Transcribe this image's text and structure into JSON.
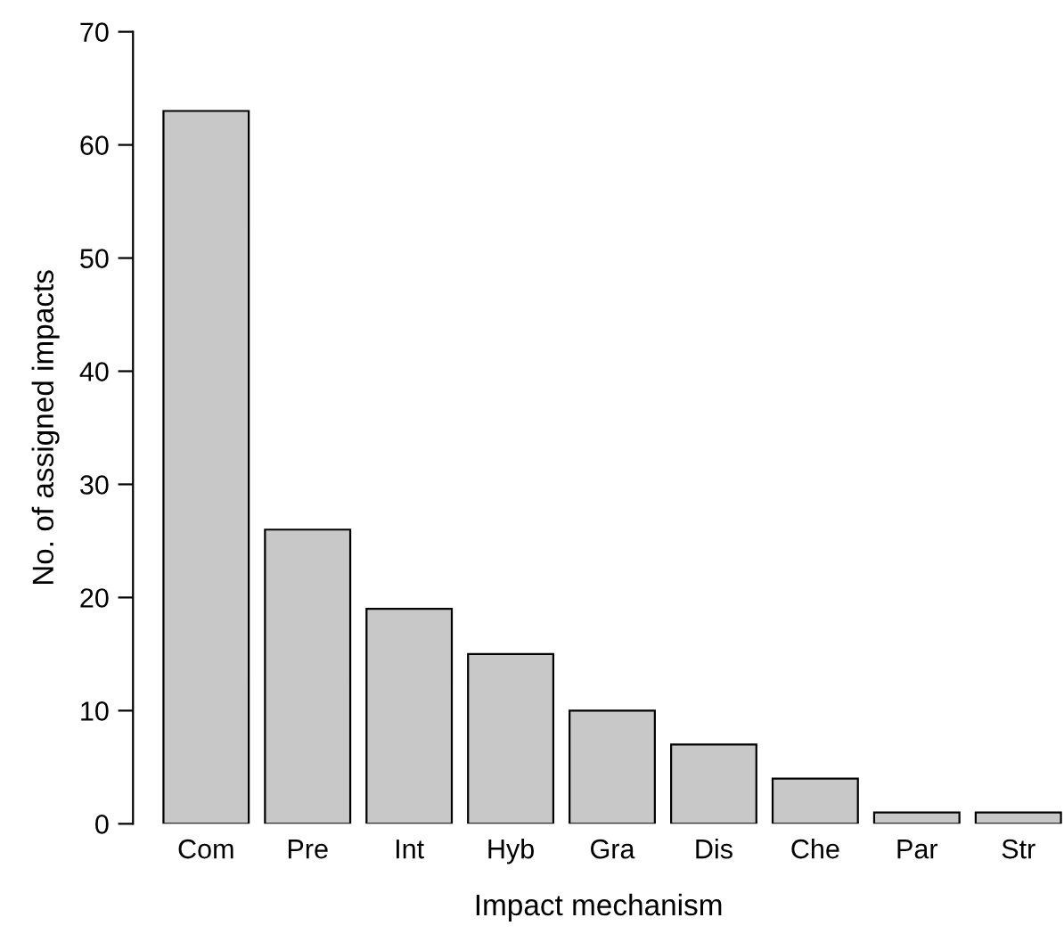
{
  "chart_data": {
    "type": "bar",
    "xlabel": "Impact mechanism",
    "ylabel": "No. of assigned impacts",
    "categories": [
      "Com",
      "Pre",
      "Int",
      "Hyb",
      "Gra",
      "Dis",
      "Che",
      "Par",
      "Str"
    ],
    "values": [
      63,
      26,
      19,
      15,
      10,
      7,
      4,
      1,
      1
    ],
    "color": "#c8c8c8",
    "ylim": [
      0,
      70
    ],
    "yticks": [
      0,
      10,
      20,
      30,
      40,
      50,
      60,
      70
    ],
    "grid": false,
    "legend": false
  }
}
